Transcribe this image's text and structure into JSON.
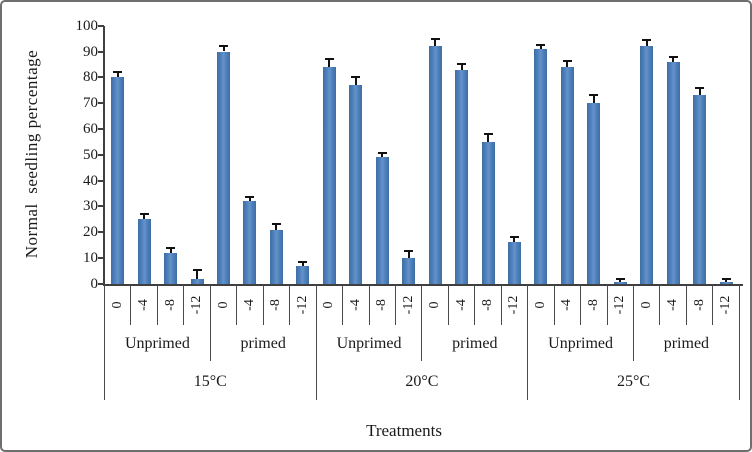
{
  "chart_data": {
    "type": "bar",
    "title": "",
    "ylabel": "Normal  seedling percentage",
    "xlabel": "Treatments",
    "ylim": [
      0,
      100
    ],
    "yticks": [
      0,
      10,
      20,
      30,
      40,
      50,
      60,
      70,
      80,
      90,
      100
    ],
    "grid": "off",
    "legend": "none",
    "bar_color": "#4f81bd",
    "bar_edge_color": "#3d6da3",
    "axis_color": "#3f3f3f",
    "error_bar_color": "#111111",
    "subtick_labels": [
      "0",
      "-4",
      "-8",
      "-12"
    ],
    "groups": [
      {
        "label": "15°C",
        "subgroups": [
          {
            "label": "Unprimed",
            "values": [
              80,
              25,
              12,
              2
            ],
            "errors": [
              2,
              2,
              2,
              3.5
            ]
          },
          {
            "label": "primed",
            "values": [
              90,
              32,
              21,
              7
            ],
            "errors": [
              2,
              1.5,
              2,
              1.5
            ]
          }
        ]
      },
      {
        "label": "20°C",
        "subgroups": [
          {
            "label": "Unprimed",
            "values": [
              84,
              77,
              49,
              10
            ],
            "errors": [
              3,
              3,
              1.5,
              2.5
            ]
          },
          {
            "label": "primed",
            "values": [
              92,
              83,
              55,
              16
            ],
            "errors": [
              3,
              2,
              3,
              2
            ]
          }
        ]
      },
      {
        "label": "25°C",
        "subgroups": [
          {
            "label": "Unprimed",
            "values": [
              91,
              84,
              70,
              0.5
            ],
            "errors": [
              1.5,
              2.5,
              3,
              1.5
            ]
          },
          {
            "label": "primed",
            "values": [
              92,
              86,
              73,
              0.5
            ],
            "errors": [
              2.5,
              2,
              3,
              1.5
            ]
          }
        ]
      }
    ]
  }
}
